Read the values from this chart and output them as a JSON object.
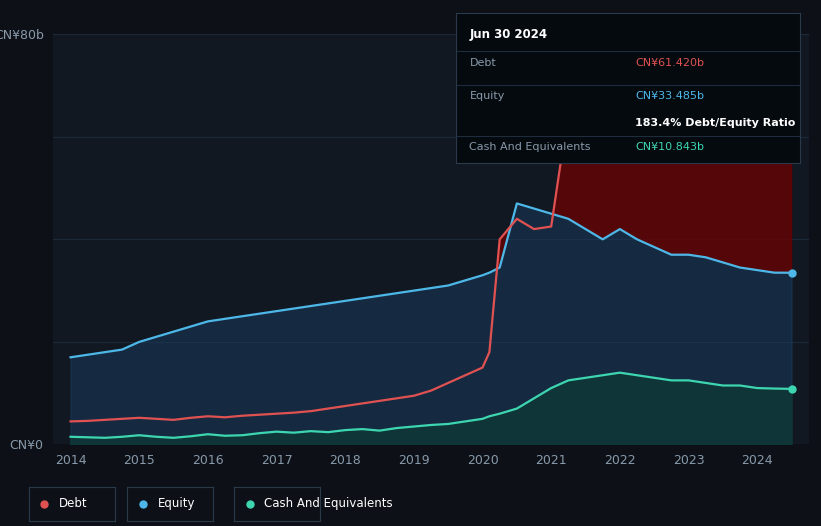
{
  "background_color": "#0d1117",
  "plot_bg_color": "#111822",
  "y_label_top": "CN¥80b",
  "y_label_bottom": "CN¥0",
  "x_ticks": [
    "2014",
    "2015",
    "2016",
    "2017",
    "2018",
    "2019",
    "2020",
    "2021",
    "2022",
    "2023",
    "2024"
  ],
  "debt_color": "#e05252",
  "equity_color": "#4db8e8",
  "cash_color": "#3dd6b0",
  "grid_color": "#1e2d3d",
  "text_color": "#8899aa",
  "tooltip_bg": "#050a0f",
  "tooltip_border": "#2a3a4a",
  "title": "Jun 30 2024",
  "debt_label": "Debt",
  "equity_label": "Equity",
  "cash_label": "Cash And Equivalents",
  "debt_value": "CN¥61.420b",
  "equity_value": "CN¥33.485b",
  "ratio_text": "183.4% Debt/Equity Ratio",
  "cash_value": "CN¥10.843b",
  "years": [
    2014.0,
    2014.25,
    2014.5,
    2014.75,
    2015.0,
    2015.25,
    2015.5,
    2015.75,
    2016.0,
    2016.25,
    2016.5,
    2016.75,
    2017.0,
    2017.25,
    2017.5,
    2017.75,
    2018.0,
    2018.25,
    2018.5,
    2018.75,
    2019.0,
    2019.25,
    2019.5,
    2019.75,
    2020.0,
    2020.1,
    2020.25,
    2020.5,
    2020.75,
    2021.0,
    2021.25,
    2021.5,
    2021.75,
    2022.0,
    2022.25,
    2022.5,
    2022.75,
    2023.0,
    2023.25,
    2023.5,
    2023.75,
    2024.0,
    2024.25,
    2024.5
  ],
  "debt": [
    4.5,
    4.6,
    4.8,
    5.0,
    5.2,
    5.0,
    4.8,
    5.2,
    5.5,
    5.3,
    5.6,
    5.8,
    6.0,
    6.2,
    6.5,
    7.0,
    7.5,
    8.0,
    8.5,
    9.0,
    9.5,
    10.5,
    12.0,
    13.5,
    15.0,
    18.0,
    40.0,
    44.0,
    42.0,
    42.5,
    65.0,
    72.0,
    70.0,
    76.0,
    74.0,
    68.0,
    65.0,
    67.0,
    65.0,
    64.0,
    63.0,
    62.0,
    61.5,
    61.42
  ],
  "equity": [
    17.0,
    17.5,
    18.0,
    18.5,
    20.0,
    21.0,
    22.0,
    23.0,
    24.0,
    24.5,
    25.0,
    25.5,
    26.0,
    26.5,
    27.0,
    27.5,
    28.0,
    28.5,
    29.0,
    29.5,
    30.0,
    30.5,
    31.0,
    32.0,
    33.0,
    33.5,
    34.5,
    47.0,
    46.0,
    45.0,
    44.0,
    42.0,
    40.0,
    42.0,
    40.0,
    38.5,
    37.0,
    37.0,
    36.5,
    35.5,
    34.5,
    34.0,
    33.5,
    33.485
  ],
  "cash": [
    1.5,
    1.4,
    1.3,
    1.5,
    1.8,
    1.5,
    1.3,
    1.6,
    2.0,
    1.7,
    1.8,
    2.2,
    2.5,
    2.3,
    2.6,
    2.4,
    2.8,
    3.0,
    2.7,
    3.2,
    3.5,
    3.8,
    4.0,
    4.5,
    5.0,
    5.5,
    6.0,
    7.0,
    9.0,
    11.0,
    12.5,
    13.0,
    13.5,
    14.0,
    13.5,
    13.0,
    12.5,
    12.5,
    12.0,
    11.5,
    11.5,
    11.0,
    10.9,
    10.843
  ],
  "ylim": [
    0,
    80
  ],
  "xlim_start": 2013.75,
  "xlim_end": 2024.75,
  "debt_fill_color": "#6b0000",
  "equity_fill_color": "#1a3a5c",
  "cash_fill_color": "#0d3a35"
}
